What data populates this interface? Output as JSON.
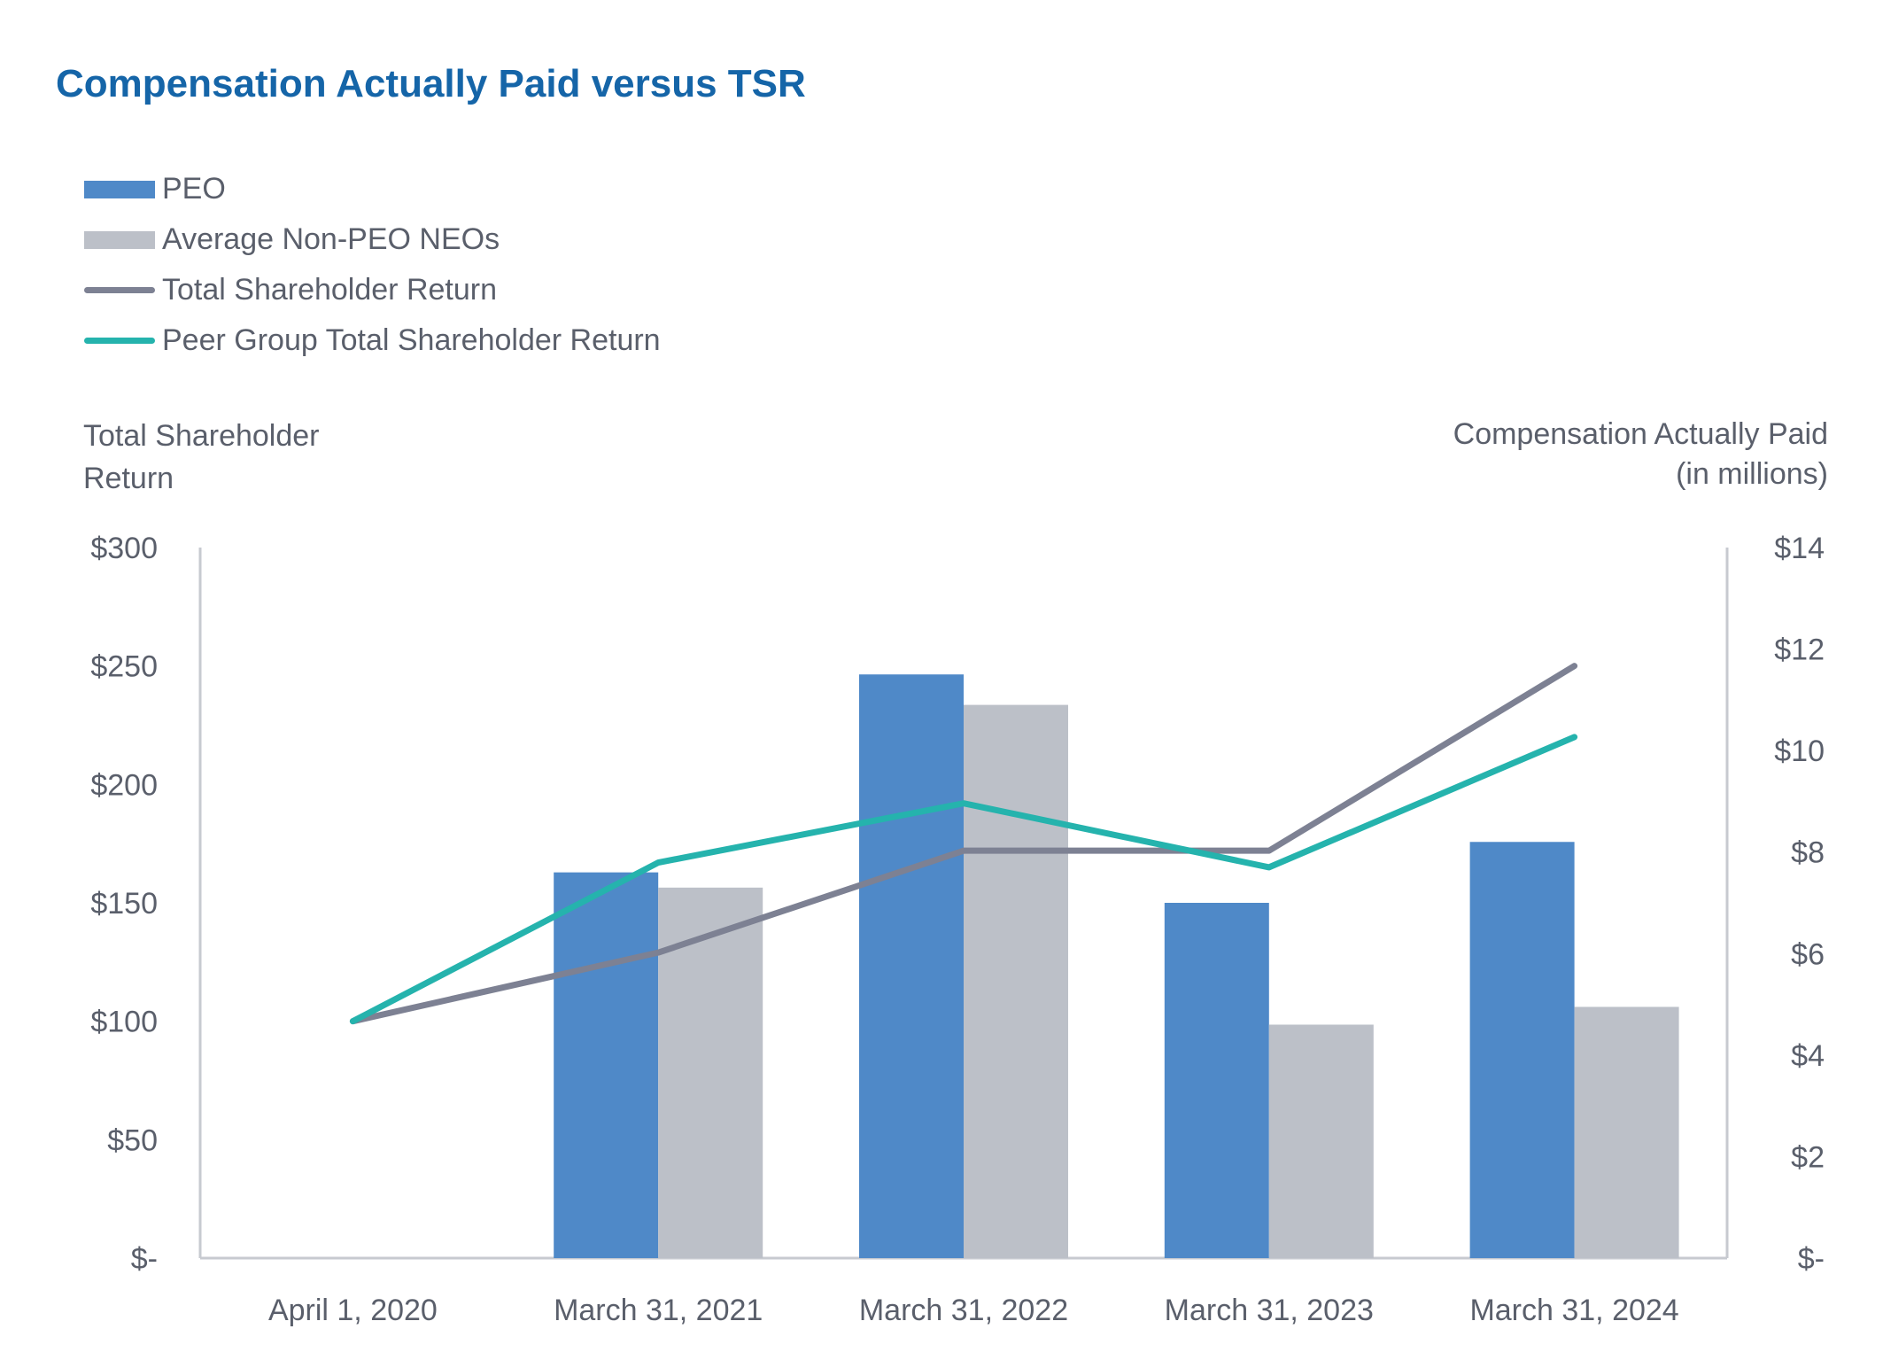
{
  "chart_data": {
    "type": "bar",
    "title": "Compensation Actually Paid versus TSR",
    "categories": [
      "April 1, 2020",
      "March 31, 2021",
      "March 31, 2022",
      "March 31, 2023",
      "March 31, 2024"
    ],
    "left_axis": {
      "label": "Total Shareholder Return",
      "label_lines": [
        "Total Shareholder",
        "Return"
      ],
      "ylim": [
        0,
        300
      ],
      "ticks": [
        0,
        50,
        100,
        150,
        200,
        250,
        300
      ],
      "tick_labels": [
        "$-",
        "$50",
        "$100",
        "$150",
        "$200",
        "$250",
        "$300"
      ]
    },
    "right_axis": {
      "label": "Compensation Actually Paid (in millions)",
      "label_lines": [
        "Compensation Actually Paid",
        "(in millions)"
      ],
      "ylim": [
        0,
        14
      ],
      "ticks": [
        0,
        2,
        4,
        6,
        8,
        10,
        12,
        14
      ],
      "tick_labels": [
        "$-",
        "$2",
        "$4",
        "$6",
        "$8",
        "$10",
        "$12",
        "$14"
      ]
    },
    "series": [
      {
        "name": "PEO",
        "kind": "bar",
        "axis": "right",
        "color": "#4f89c8",
        "values": [
          null,
          7.6,
          11.5,
          7.0,
          8.2
        ]
      },
      {
        "name": "Average Non-PEO NEOs",
        "kind": "bar",
        "axis": "right",
        "color": "#bcc0c8",
        "values": [
          null,
          7.3,
          10.9,
          4.6,
          4.95
        ]
      },
      {
        "name": "Total Shareholder Return",
        "kind": "line",
        "axis": "left",
        "color": "#7d8193",
        "values": [
          100,
          129,
          172,
          172,
          250
        ]
      },
      {
        "name": "Peer Group Total Shareholder Return",
        "kind": "line",
        "axis": "left",
        "color": "#25b3ad",
        "values": [
          100,
          167,
          192,
          165,
          220
        ]
      }
    ]
  }
}
